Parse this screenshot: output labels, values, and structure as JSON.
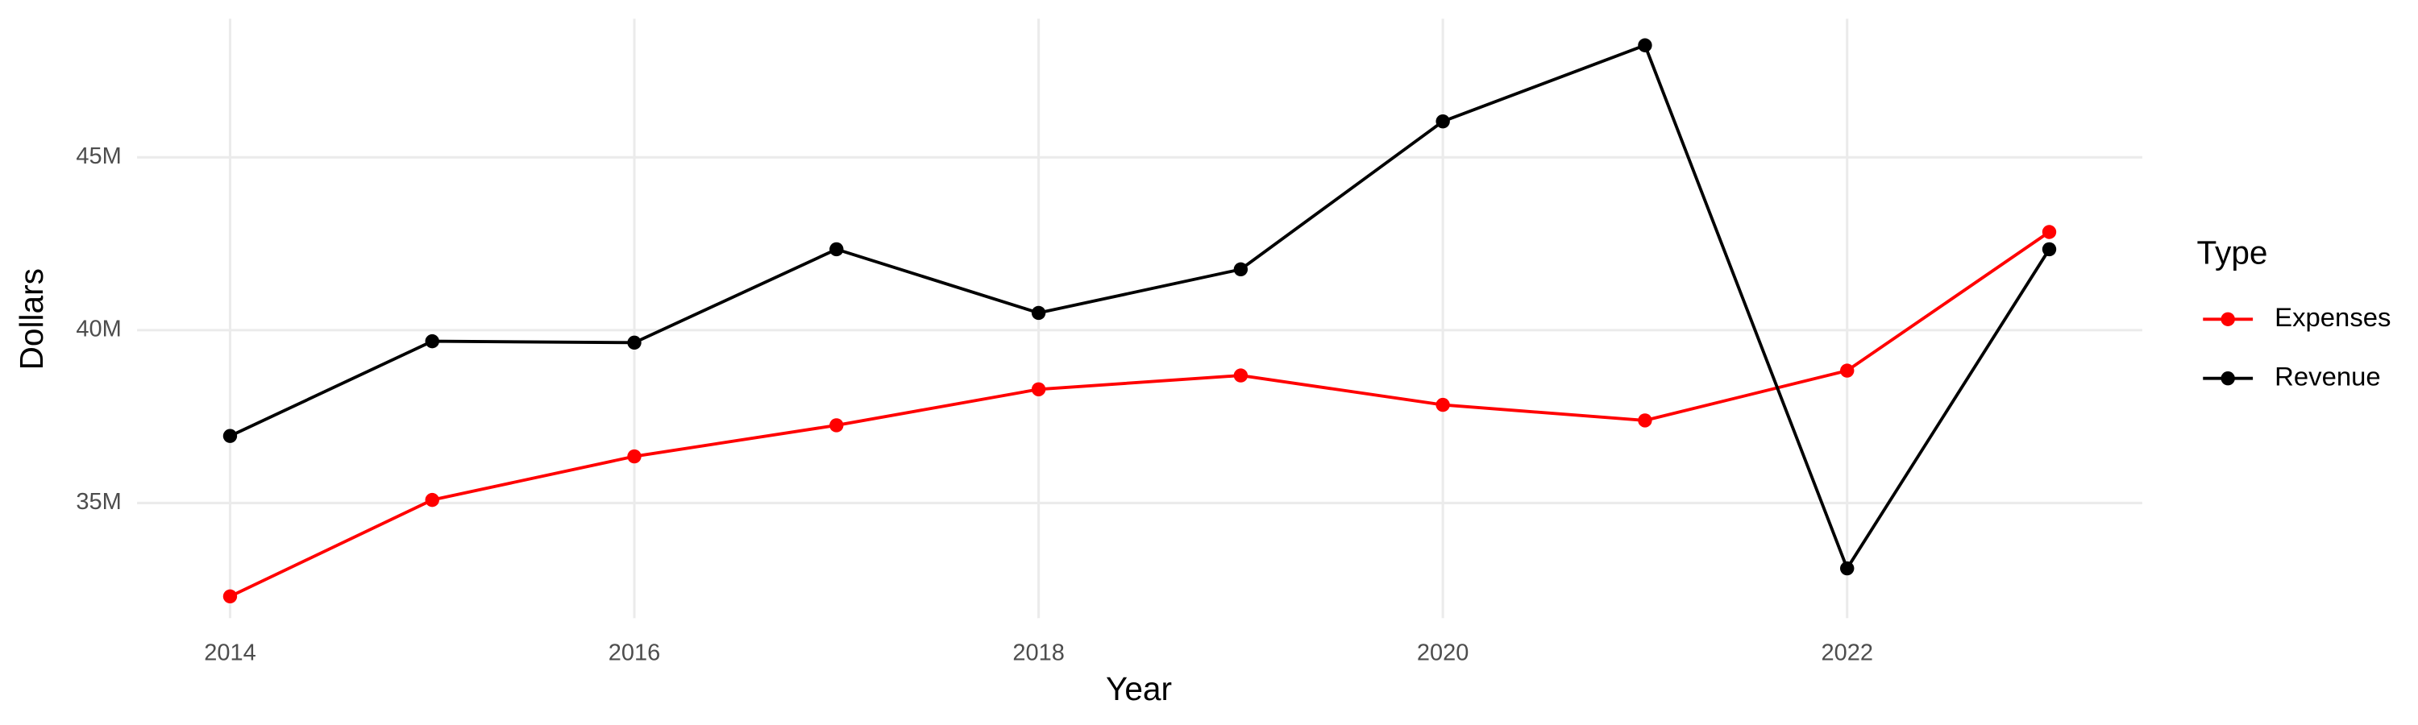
{
  "chart_data": {
    "type": "line",
    "x_label": "Year",
    "y_label": "Dollars",
    "legend_title": "Type",
    "x": [
      2014,
      2015,
      2016,
      2017,
      2018,
      2019,
      2020,
      2021,
      2022,
      2023
    ],
    "series": [
      {
        "name": "Expenses",
        "color": "#ff0000",
        "values": [
          32300000,
          35090000,
          36350000,
          37250000,
          38290000,
          38690000,
          37840000,
          37390000,
          38830000,
          42840000
        ]
      },
      {
        "name": "Revenue",
        "color": "#000000",
        "values": [
          36940000,
          39680000,
          39640000,
          42340000,
          40500000,
          41760000,
          46040000,
          48240000,
          33110000,
          42340000
        ]
      }
    ],
    "xlim": [
      2013.54,
      2023.46
    ],
    "xticks": [
      2014,
      2016,
      2018,
      2020,
      2022
    ],
    "ylim": [
      31670000,
      49010000
    ],
    "yticks": [
      {
        "value": 35000000,
        "label": "35M"
      },
      {
        "value": 40000000,
        "label": "40M"
      },
      {
        "value": 45000000,
        "label": "45M"
      }
    ],
    "grid": true,
    "legend": "right"
  }
}
